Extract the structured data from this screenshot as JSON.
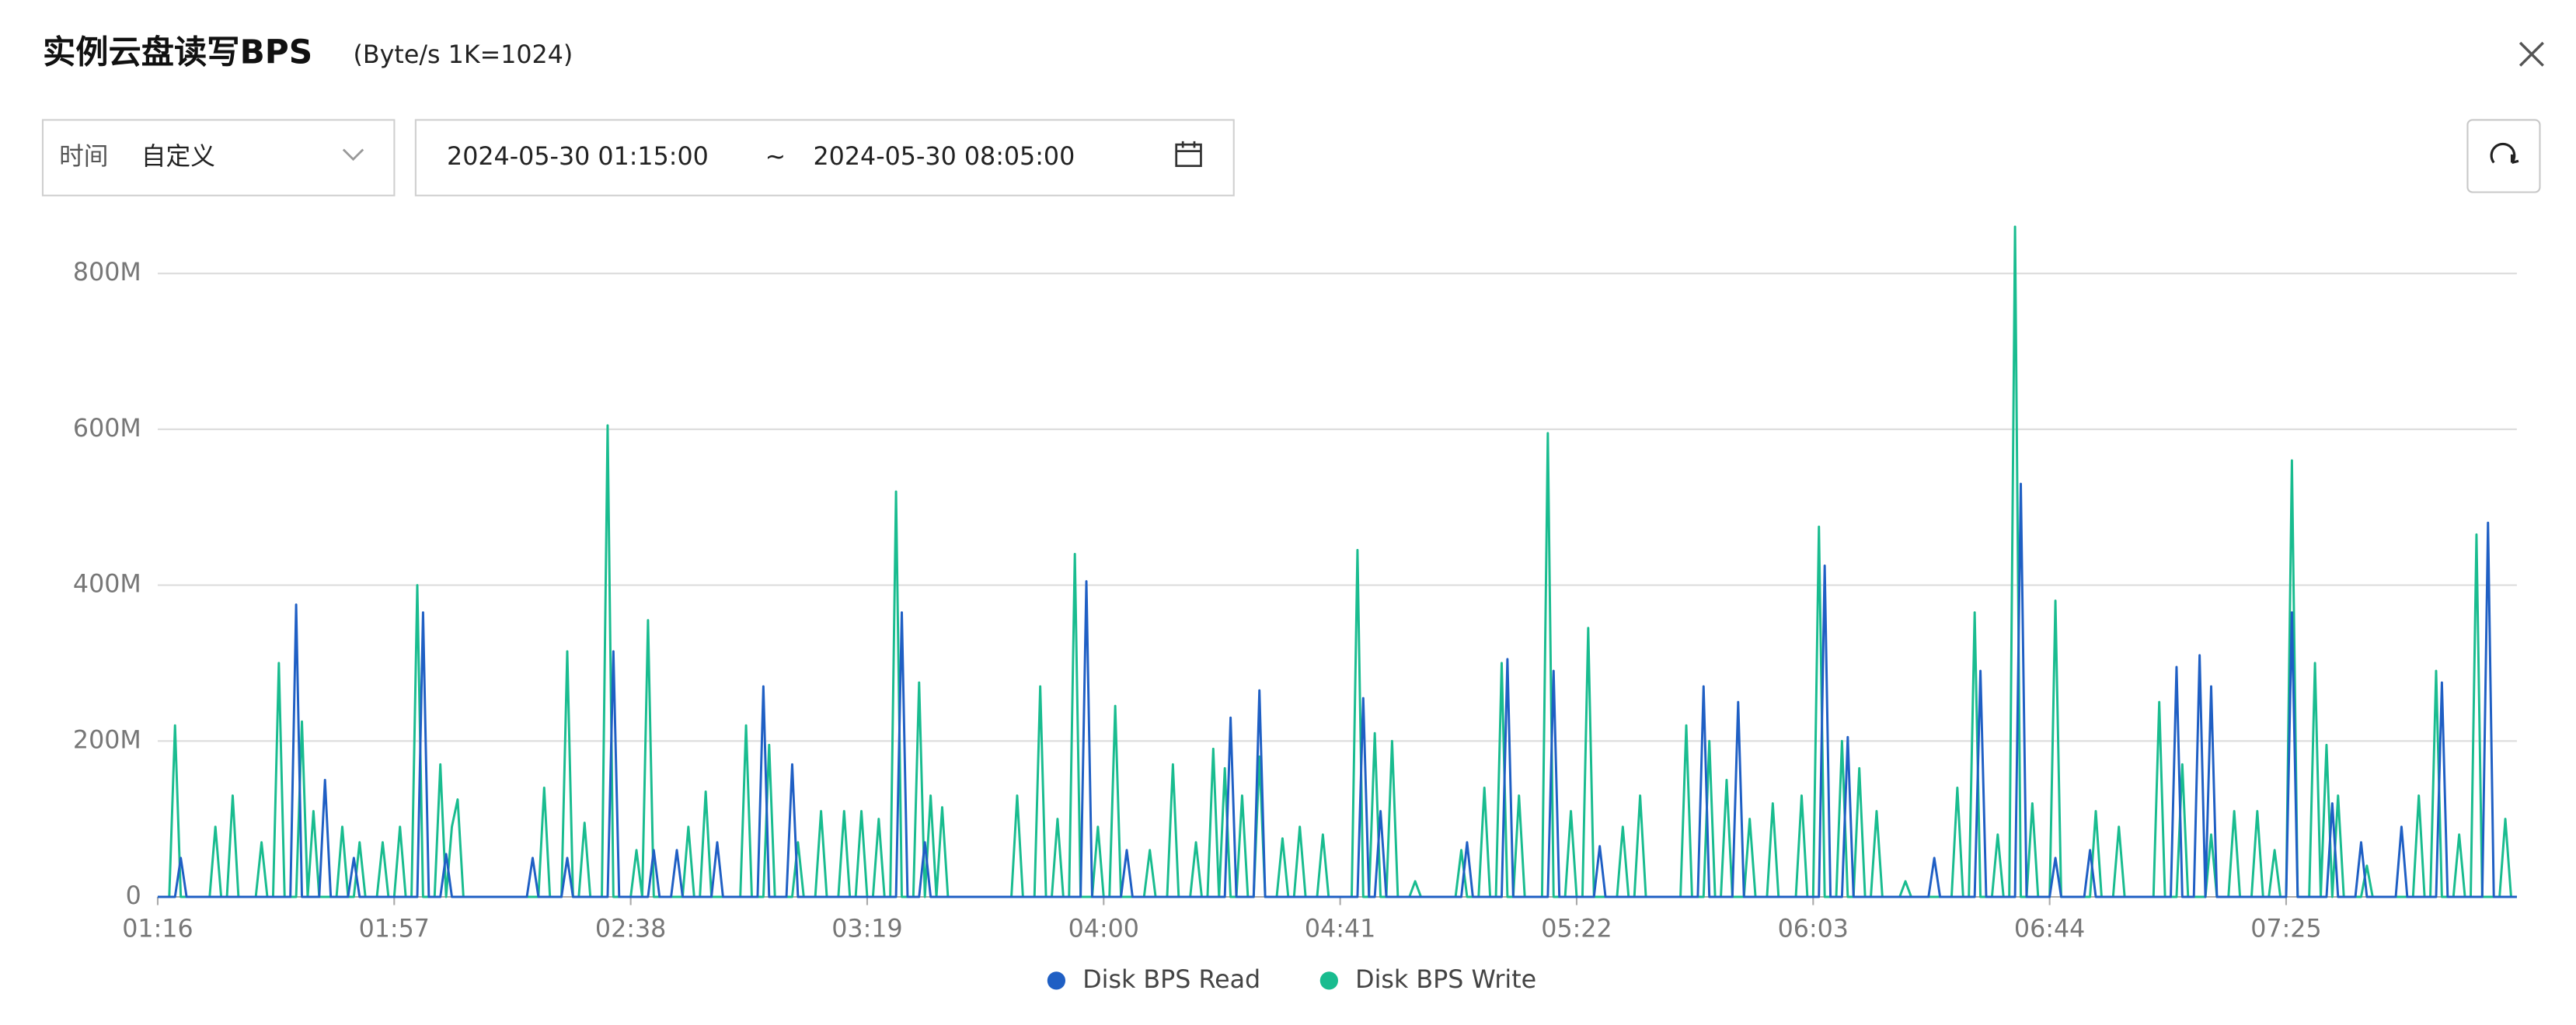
{
  "header": {
    "title": "实例云盘读写BPS",
    "subtitle": "(Byte/s  1K=1024)"
  },
  "controls": {
    "time_label": "时间",
    "time_mode": "自定义",
    "start": "2024-05-30 01:15:00",
    "separator": "~",
    "end": "2024-05-30 08:05:00"
  },
  "chart_data": {
    "type": "line",
    "categories": [
      "01:16",
      null,
      null,
      null,
      null,
      null,
      null,
      null,
      null,
      null,
      null,
      null,
      null,
      null,
      null,
      null,
      null,
      null,
      null,
      null,
      null,
      null,
      null,
      null,
      null,
      null,
      null,
      null,
      null,
      null,
      null,
      null,
      null,
      null,
      null,
      null,
      null,
      null,
      null,
      null,
      null,
      "01:57",
      null,
      null,
      null,
      null,
      null,
      null,
      null,
      null,
      null,
      null,
      null,
      null,
      null,
      null,
      null,
      null,
      null,
      null,
      null,
      null,
      null,
      null,
      null,
      null,
      null,
      null,
      null,
      null,
      null,
      null,
      null,
      null,
      null,
      null,
      null,
      null,
      null,
      null,
      null,
      null,
      "02:38",
      null,
      null,
      null,
      null,
      null,
      null,
      null,
      null,
      null,
      null,
      null,
      null,
      null,
      null,
      null,
      null,
      null,
      null,
      null,
      null,
      null,
      null,
      null,
      null,
      null,
      null,
      null,
      null,
      null,
      null,
      null,
      null,
      null,
      null,
      null,
      null,
      null,
      null,
      null,
      null,
      "03:19",
      null,
      null,
      null,
      null,
      null,
      null,
      null,
      null,
      null,
      null,
      null,
      null,
      null,
      null,
      null,
      null,
      null,
      null,
      null,
      null,
      null,
      null,
      null,
      null,
      null,
      null,
      null,
      null,
      null,
      null,
      null,
      null,
      null,
      null,
      null,
      null,
      null,
      null,
      null,
      null,
      "04:00",
      null,
      null,
      null,
      null,
      null,
      null,
      null,
      null,
      null,
      null,
      null,
      null,
      null,
      null,
      null,
      null,
      null,
      null,
      null,
      null,
      null,
      null,
      null,
      null,
      null,
      null,
      null,
      null,
      null,
      null,
      null,
      null,
      null,
      null,
      null,
      null,
      null,
      null,
      null,
      null,
      "04:41",
      null,
      null,
      null,
      null,
      null,
      null,
      null,
      null,
      null,
      null,
      null,
      null,
      null,
      null,
      null,
      null,
      null,
      null,
      null,
      null,
      null,
      null,
      null,
      null,
      null,
      null,
      null,
      null,
      null,
      null,
      null,
      null,
      null,
      null,
      null,
      null,
      null,
      null,
      null,
      null,
      "05:22",
      null,
      null,
      null,
      null,
      null,
      null,
      null,
      null,
      null,
      null,
      null,
      null,
      null,
      null,
      null,
      null,
      null,
      null,
      null,
      null,
      null,
      null,
      null,
      null,
      null,
      null,
      null,
      null,
      null,
      null,
      null,
      null,
      null,
      null,
      null,
      null,
      null,
      null,
      null,
      null,
      "06:03",
      null,
      null,
      null,
      null,
      null,
      null,
      null,
      null,
      null,
      null,
      null,
      null,
      null,
      null,
      null,
      null,
      null,
      null,
      null,
      null,
      null,
      null,
      null,
      null,
      null,
      null,
      null,
      null,
      null,
      null,
      null,
      null,
      null,
      null,
      null,
      null,
      null,
      null,
      null,
      null,
      "06:44",
      null,
      null,
      null,
      null,
      null,
      null,
      null,
      null,
      null,
      null,
      null,
      null,
      null,
      null,
      null,
      null,
      null,
      null,
      null,
      null,
      null,
      null,
      null,
      null,
      null,
      null,
      null,
      null,
      null,
      null,
      null,
      null,
      null,
      null,
      null,
      null,
      null,
      null,
      null,
      null,
      "07:25",
      null,
      null,
      null,
      null,
      null,
      null,
      null,
      null,
      null,
      null,
      null,
      null,
      null,
      null,
      null,
      null,
      null,
      null,
      null,
      null,
      null,
      null,
      null,
      null,
      null,
      null,
      null,
      null,
      null,
      null,
      null,
      null,
      null,
      null,
      null,
      null,
      null,
      null,
      null,
      null
    ],
    "series": [
      {
        "name": "Disk BPS Read",
        "color": "#1f5fc4",
        "values": [
          0,
          0,
          0,
          0,
          50,
          0,
          0,
          0,
          0,
          0,
          0,
          0,
          0,
          0,
          0,
          0,
          0,
          0,
          0,
          0,
          0,
          0,
          0,
          0,
          375,
          0,
          0,
          0,
          0,
          150,
          0,
          0,
          0,
          0,
          50,
          0,
          0,
          0,
          0,
          0,
          0,
          0,
          0,
          0,
          0,
          0,
          365,
          0,
          0,
          0,
          55,
          0,
          0,
          0,
          0,
          0,
          0,
          0,
          0,
          0,
          0,
          0,
          0,
          0,
          0,
          50,
          0,
          0,
          0,
          0,
          0,
          50,
          0,
          0,
          0,
          0,
          0,
          0,
          0,
          315,
          0,
          0,
          0,
          0,
          0,
          0,
          60,
          0,
          0,
          0,
          60,
          0,
          0,
          0,
          0,
          0,
          0,
          70,
          0,
          0,
          0,
          0,
          0,
          0,
          0,
          270,
          0,
          0,
          0,
          0,
          170,
          0,
          0,
          0,
          0,
          0,
          0,
          0,
          0,
          0,
          0,
          0,
          0,
          0,
          0,
          0,
          0,
          0,
          0,
          365,
          0,
          0,
          0,
          70,
          0,
          0,
          0,
          0,
          0,
          0,
          0,
          0,
          0,
          0,
          0,
          0,
          0,
          0,
          0,
          0,
          0,
          0,
          0,
          0,
          0,
          0,
          0,
          0,
          0,
          0,
          0,
          405,
          0,
          0,
          0,
          0,
          0,
          0,
          60,
          0,
          0,
          0,
          0,
          0,
          0,
          0,
          0,
          0,
          0,
          0,
          0,
          0,
          0,
          0,
          0,
          0,
          230,
          0,
          0,
          0,
          0,
          265,
          0,
          0,
          0,
          0,
          0,
          0,
          0,
          0,
          0,
          0,
          0,
          0,
          0,
          0,
          0,
          0,
          0,
          255,
          0,
          0,
          110,
          0,
          0,
          0,
          0,
          0,
          0,
          0,
          0,
          0,
          0,
          0,
          0,
          0,
          0,
          70,
          0,
          0,
          0,
          0,
          0,
          0,
          305,
          0,
          0,
          0,
          0,
          0,
          0,
          0,
          290,
          0,
          0,
          0,
          0,
          0,
          0,
          0,
          65,
          0,
          0,
          0,
          0,
          0,
          0,
          0,
          0,
          0,
          0,
          0,
          0,
          0,
          0,
          0,
          0,
          0,
          270,
          0,
          0,
          0,
          0,
          0,
          250,
          0,
          0,
          0,
          0,
          0,
          0,
          0,
          0,
          0,
          0,
          0,
          0,
          0,
          0,
          425,
          0,
          0,
          0,
          205,
          0,
          0,
          0,
          0,
          0,
          0,
          0,
          0,
          0,
          0,
          0,
          0,
          0,
          0,
          50,
          0,
          0,
          0,
          0,
          0,
          0,
          0,
          290,
          0,
          0,
          0,
          0,
          0,
          0,
          530,
          0,
          0,
          0,
          0,
          0,
          50,
          0,
          0,
          0,
          0,
          0,
          60,
          0,
          0,
          0,
          0,
          0,
          0,
          0,
          0,
          0,
          0,
          0,
          0,
          0,
          0,
          295,
          0,
          0,
          0,
          310,
          0,
          270,
          0,
          0,
          0,
          0,
          0,
          0,
          0,
          0,
          0,
          0,
          0,
          0,
          0,
          365,
          0,
          0,
          0,
          0,
          0,
          0,
          120,
          0,
          0,
          0,
          0,
          70,
          0,
          0,
          0,
          0,
          0,
          0,
          90,
          0,
          0,
          0,
          0,
          0,
          0,
          275,
          0,
          0,
          0,
          0,
          0,
          0,
          0,
          480,
          0,
          0,
          0,
          0,
          0
        ]
      },
      {
        "name": "Disk BPS Write",
        "color": "#19bc8f",
        "values": [
          0,
          0,
          0,
          220,
          0,
          0,
          0,
          0,
          0,
          0,
          90,
          0,
          0,
          130,
          0,
          0,
          0,
          0,
          70,
          0,
          0,
          300,
          0,
          0,
          0,
          225,
          0,
          110,
          0,
          0,
          0,
          0,
          90,
          0,
          0,
          70,
          0,
          0,
          0,
          70,
          0,
          0,
          90,
          0,
          0,
          400,
          0,
          0,
          0,
          170,
          0,
          90,
          125,
          0,
          0,
          0,
          0,
          0,
          0,
          0,
          0,
          0,
          0,
          0,
          0,
          0,
          0,
          140,
          0,
          0,
          0,
          315,
          0,
          0,
          95,
          0,
          0,
          0,
          605,
          0,
          0,
          0,
          0,
          60,
          0,
          355,
          0,
          0,
          0,
          0,
          0,
          0,
          90,
          0,
          0,
          135,
          0,
          0,
          0,
          0,
          0,
          0,
          220,
          0,
          0,
          0,
          195,
          0,
          0,
          0,
          0,
          70,
          0,
          0,
          0,
          110,
          0,
          0,
          0,
          110,
          0,
          0,
          110,
          0,
          0,
          100,
          0,
          0,
          520,
          0,
          0,
          0,
          275,
          0,
          130,
          0,
          115,
          0,
          0,
          0,
          0,
          0,
          0,
          0,
          0,
          0,
          0,
          0,
          0,
          130,
          0,
          0,
          0,
          270,
          0,
          0,
          100,
          0,
          0,
          440,
          0,
          0,
          0,
          90,
          0,
          0,
          245,
          0,
          0,
          0,
          0,
          0,
          60,
          0,
          0,
          0,
          170,
          0,
          0,
          0,
          70,
          0,
          0,
          190,
          0,
          165,
          0,
          0,
          130,
          0,
          0,
          180,
          0,
          0,
          0,
          75,
          0,
          0,
          90,
          0,
          0,
          0,
          80,
          0,
          0,
          0,
          0,
          0,
          445,
          0,
          0,
          210,
          0,
          0,
          200,
          0,
          0,
          0,
          20,
          0,
          0,
          0,
          0,
          0,
          0,
          0,
          60,
          0,
          0,
          0,
          140,
          0,
          0,
          300,
          0,
          0,
          130,
          0,
          0,
          0,
          0,
          595,
          0,
          0,
          0,
          110,
          0,
          0,
          345,
          0,
          0,
          0,
          0,
          0,
          90,
          0,
          0,
          130,
          0,
          0,
          0,
          0,
          0,
          0,
          0,
          220,
          0,
          0,
          0,
          200,
          0,
          0,
          150,
          0,
          0,
          0,
          100,
          0,
          0,
          0,
          120,
          0,
          0,
          0,
          0,
          130,
          0,
          0,
          475,
          0,
          0,
          0,
          200,
          0,
          0,
          165,
          0,
          0,
          110,
          0,
          0,
          0,
          0,
          20,
          0,
          0,
          0,
          0,
          0,
          0,
          0,
          0,
          140,
          0,
          0,
          365,
          0,
          0,
          0,
          80,
          0,
          0,
          860,
          0,
          0,
          120,
          0,
          0,
          0,
          380,
          0,
          0,
          0,
          0,
          0,
          0,
          110,
          0,
          0,
          0,
          90,
          0,
          0,
          0,
          0,
          0,
          0,
          250,
          0,
          0,
          0,
          170,
          0,
          0,
          0,
          0,
          80,
          0,
          0,
          0,
          110,
          0,
          0,
          0,
          110,
          0,
          0,
          60,
          0,
          0,
          560,
          0,
          0,
          0,
          300,
          0,
          195,
          0,
          130,
          0,
          0,
          0,
          0,
          40,
          0,
          0,
          0,
          0,
          0,
          0,
          0,
          0,
          130,
          0,
          0,
          290,
          0,
          0,
          0,
          80,
          0,
          0,
          465,
          0,
          0,
          0,
          0,
          100,
          0,
          0
        ]
      }
    ],
    "ylim": [
      0,
      860
    ],
    "yticks": [
      0,
      {
        "value": 200,
        "label": "200M"
      },
      {
        "value": 400,
        "label": "400M"
      },
      {
        "value": 600,
        "label": "600M"
      },
      {
        "value": 800,
        "label": "800M"
      }
    ],
    "grid": true,
    "legend": "bottom"
  }
}
